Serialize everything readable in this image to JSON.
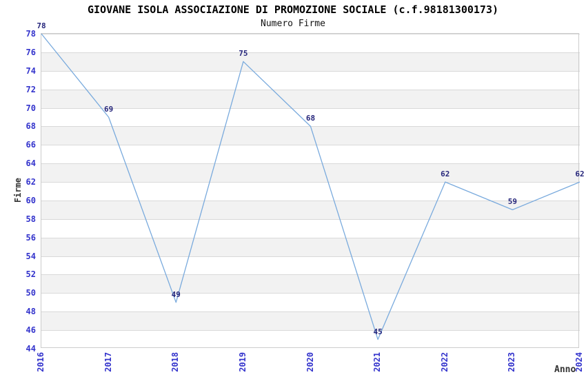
{
  "chart_data": {
    "type": "line",
    "title": "GIOVANE ISOLA ASSOCIAZIONE DI PROMOZIONE SOCIALE (c.f.98181300173)",
    "subtitle": "Numero Firme",
    "xlabel": "Anno",
    "ylabel": "Firme",
    "categories": [
      "2016",
      "2017",
      "2018",
      "2019",
      "2020",
      "2021",
      "2022",
      "2023",
      "2024"
    ],
    "series": [
      {
        "name": "Numero Firme",
        "values": [
          78,
          69,
          49,
          75,
          68,
          45,
          62,
          59,
          62
        ]
      }
    ],
    "ylim": [
      44,
      78
    ],
    "ytick_step": 2,
    "grid": true,
    "banded_background": true,
    "legend_position": "none",
    "colors": {
      "line": "#79aadd",
      "tick_label": "#3333cc",
      "data_label": "#26267b",
      "band": "#f2f2f2",
      "grid_line": "#d9d9d9",
      "plot_border": "#cccccc",
      "title": "#000000",
      "axis_label": "#333333"
    }
  }
}
